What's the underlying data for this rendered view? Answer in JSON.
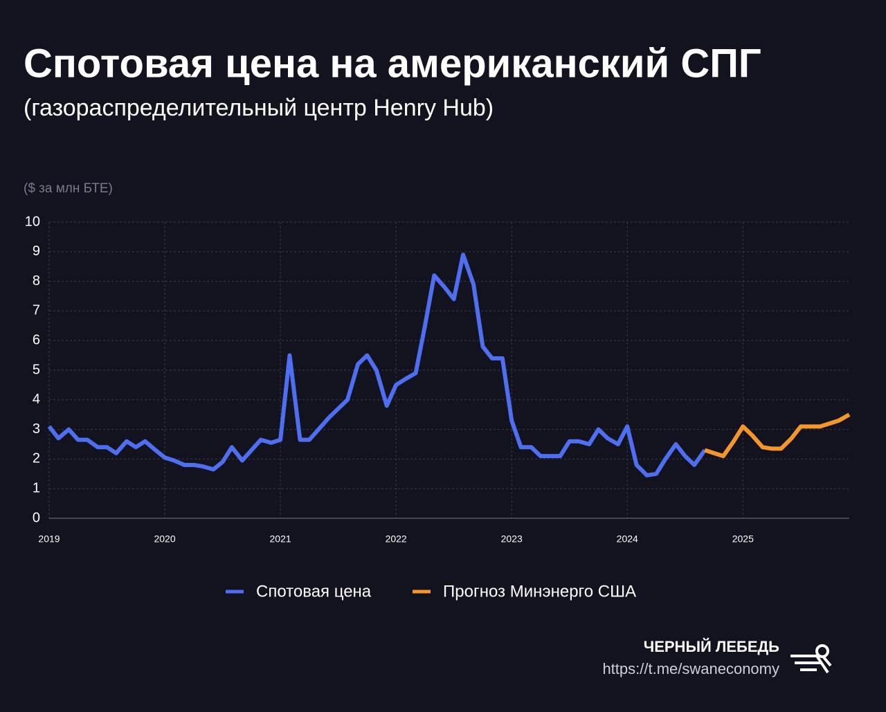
{
  "chart_data": {
    "type": "line",
    "title": "Спотовая цена на американский СПГ",
    "subtitle": "(газораспределительный центр Henry Hub)",
    "y_label": "($ за млн БТЕ)",
    "xlim": [
      2019,
      2025.92
    ],
    "xticks": [
      2019,
      2020,
      2021,
      2022,
      2023,
      2024,
      2025
    ],
    "ylim": [
      0,
      10
    ],
    "yticks": [
      0,
      1,
      2,
      3,
      4,
      5,
      6,
      7,
      8,
      9,
      10
    ],
    "grid": true,
    "legend": "bottom",
    "series": [
      {
        "name": "Спотовая цена",
        "color": "#4f6ef0",
        "x": [
          2019,
          2019.08,
          2019.17,
          2019.25,
          2019.33,
          2019.42,
          2019.5,
          2019.58,
          2019.67,
          2019.75,
          2019.83,
          2019.92,
          2020,
          2020.08,
          2020.17,
          2020.25,
          2020.33,
          2020.42,
          2020.5,
          2020.58,
          2020.67,
          2020.75,
          2020.83,
          2020.92,
          2021,
          2021.08,
          2021.17,
          2021.25,
          2021.33,
          2021.42,
          2021.5,
          2021.58,
          2021.67,
          2021.75,
          2021.83,
          2021.92,
          2022,
          2022.08,
          2022.17,
          2022.25,
          2022.33,
          2022.42,
          2022.5,
          2022.58,
          2022.67,
          2022.75,
          2022.83,
          2022.92,
          2023,
          2023.08,
          2023.17,
          2023.25,
          2023.33,
          2023.42,
          2023.5,
          2023.58,
          2023.67,
          2023.75,
          2023.83,
          2023.92,
          2024,
          2024.08,
          2024.17,
          2024.25,
          2024.33,
          2024.42,
          2024.5,
          2024.58,
          2024.67
        ],
        "values": [
          3.1,
          2.7,
          3.0,
          2.65,
          2.65,
          2.4,
          2.4,
          2.2,
          2.6,
          2.4,
          2.6,
          2.3,
          2.05,
          1.95,
          1.8,
          1.8,
          1.75,
          1.65,
          1.9,
          2.4,
          1.95,
          2.3,
          2.65,
          2.55,
          2.65,
          5.5,
          2.65,
          2.65,
          3.0,
          3.4,
          3.7,
          4.0,
          5.2,
          5.5,
          5.0,
          3.8,
          4.5,
          4.7,
          4.9,
          6.5,
          8.2,
          7.8,
          7.4,
          8.9,
          7.9,
          5.8,
          5.4,
          5.4,
          3.3,
          2.4,
          2.4,
          2.1,
          2.1,
          2.1,
          2.6,
          2.6,
          2.5,
          3.0,
          2.7,
          2.5,
          3.1,
          1.8,
          1.45,
          1.5,
          2.0,
          2.5,
          2.1,
          1.8,
          2.3
        ]
      },
      {
        "name": "Прогноз Минэнерго США",
        "color": "#f5962a",
        "x": [
          2024.67,
          2024.75,
          2024.83,
          2024.92,
          2025,
          2025.08,
          2025.17,
          2025.25,
          2025.33,
          2025.42,
          2025.5,
          2025.58,
          2025.67,
          2025.75,
          2025.83,
          2025.92
        ],
        "values": [
          2.3,
          2.2,
          2.1,
          2.6,
          3.1,
          2.8,
          2.4,
          2.35,
          2.35,
          2.7,
          3.1,
          3.1,
          3.1,
          3.2,
          3.3,
          3.5
        ]
      }
    ]
  },
  "source": {
    "name": "ЧЕРНЫЙ ЛЕБЕДЬ",
    "url": "https://t.me/swaneconomy"
  }
}
